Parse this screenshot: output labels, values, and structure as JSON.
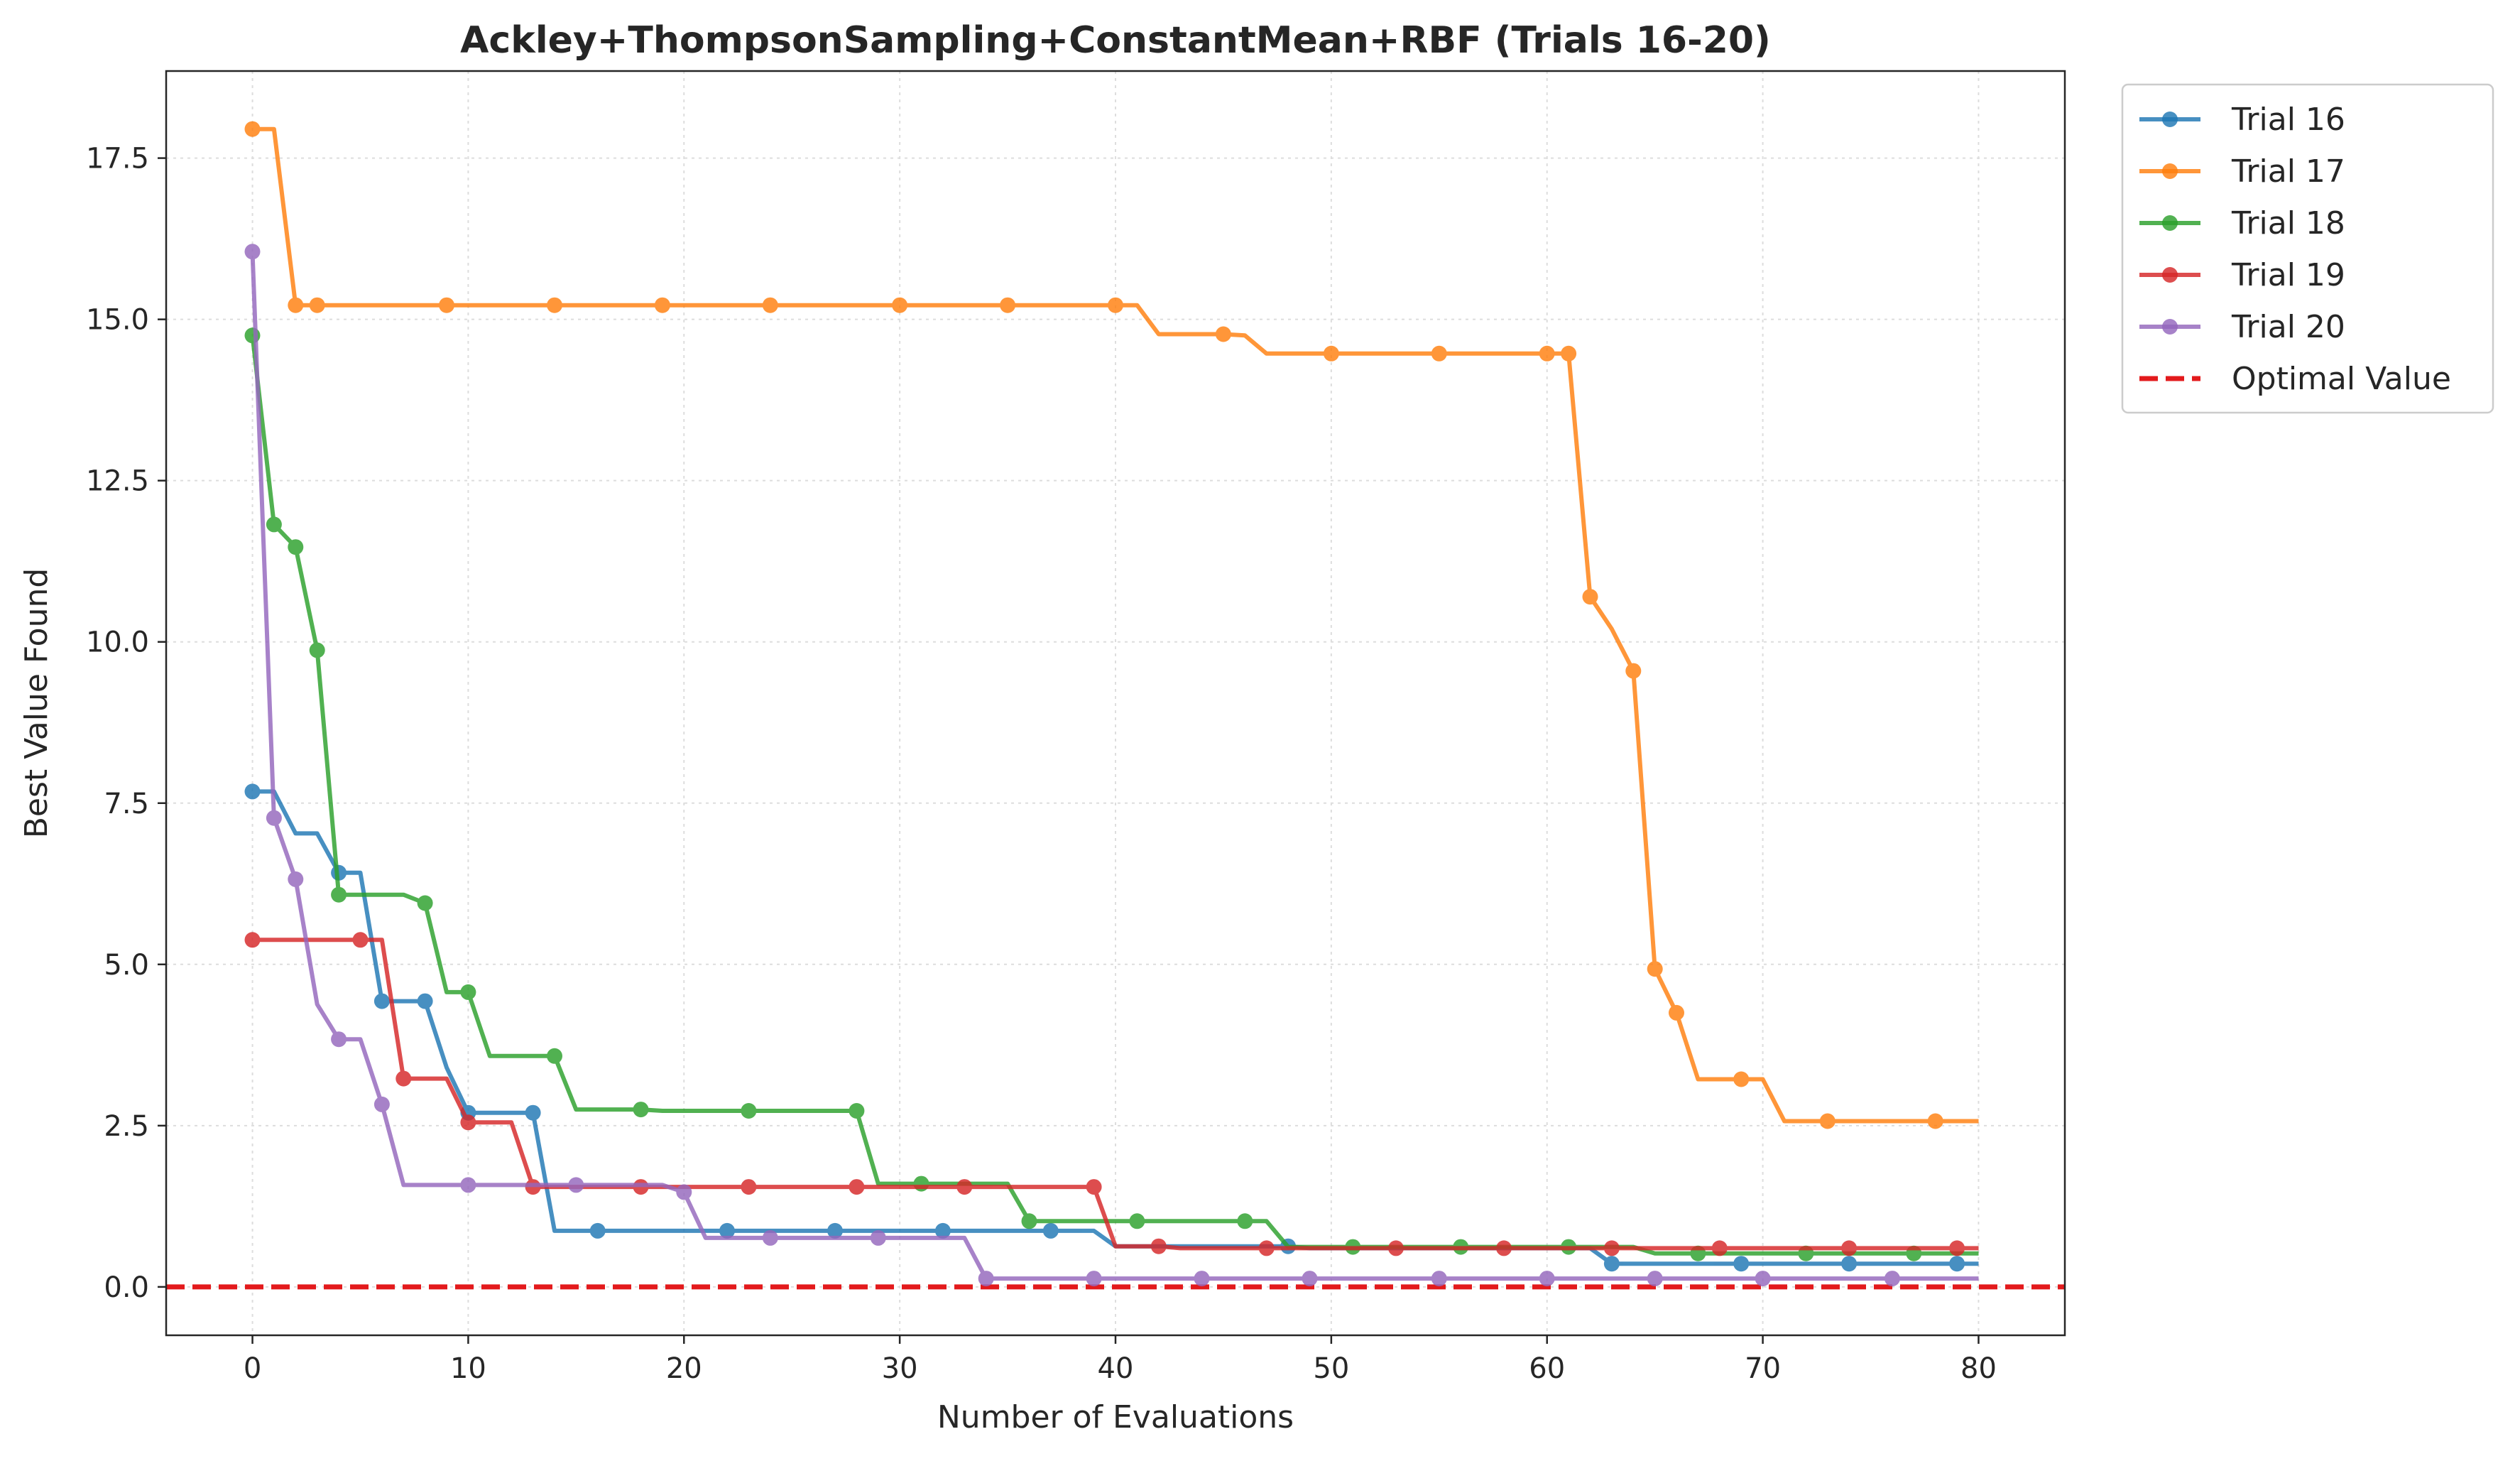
{
  "chart_data": {
    "type": "line",
    "title": "Ackley+ThompsonSampling+ConstantMean+RBF (Trials 16-20)",
    "xlabel": "Number of Evaluations",
    "ylabel": "Best Value Found",
    "xlim": [
      -4,
      84
    ],
    "ylim": [
      -0.75,
      18.85
    ],
    "xticks": [
      0,
      10,
      20,
      30,
      40,
      50,
      60,
      70,
      80
    ],
    "yticks": [
      0.0,
      2.5,
      5.0,
      7.5,
      10.0,
      12.5,
      15.0,
      17.5
    ],
    "xtick_labels": [
      "0",
      "10",
      "20",
      "30",
      "40",
      "50",
      "60",
      "70",
      "80"
    ],
    "ytick_labels": [
      "0.0",
      "2.5",
      "5.0",
      "7.5",
      "10.0",
      "12.5",
      "15.0",
      "17.5"
    ],
    "grid": true,
    "legend_position": "outside-top-right",
    "optimal_value": {
      "name": "Optimal Value",
      "value": 0.0,
      "color": "#e31a1c",
      "style": "dashed"
    },
    "series": [
      {
        "name": "Trial 16",
        "color": "#1f77b4",
        "line": [
          [
            0,
            7.68
          ],
          [
            1,
            7.68
          ],
          [
            2,
            7.03
          ],
          [
            3,
            7.03
          ],
          [
            4,
            6.42
          ],
          [
            5,
            6.42
          ],
          [
            6,
            4.43
          ],
          [
            7,
            4.43
          ],
          [
            8,
            4.43
          ],
          [
            9,
            3.4
          ],
          [
            10,
            2.7
          ],
          [
            11,
            2.7
          ],
          [
            12,
            2.7
          ],
          [
            13,
            2.7
          ],
          [
            14,
            0.87
          ],
          [
            15,
            0.87
          ],
          [
            16,
            0.87
          ],
          [
            22,
            0.87
          ],
          [
            27,
            0.87
          ],
          [
            32,
            0.87
          ],
          [
            37,
            0.87
          ],
          [
            39,
            0.87
          ],
          [
            40,
            0.63
          ],
          [
            48,
            0.63
          ],
          [
            49,
            0.6
          ],
          [
            62,
            0.6
          ],
          [
            63,
            0.36
          ],
          [
            80,
            0.36
          ]
        ],
        "markers": [
          [
            0,
            7.68
          ],
          [
            4,
            6.42
          ],
          [
            6,
            4.43
          ],
          [
            8,
            4.43
          ],
          [
            10,
            2.7
          ],
          [
            13,
            2.7
          ],
          [
            16,
            0.87
          ],
          [
            22,
            0.87
          ],
          [
            27,
            0.87
          ],
          [
            32,
            0.87
          ],
          [
            37,
            0.87
          ],
          [
            48,
            0.63
          ],
          [
            63,
            0.36
          ],
          [
            69,
            0.36
          ],
          [
            74,
            0.36
          ],
          [
            79,
            0.36
          ]
        ]
      },
      {
        "name": "Trial 17",
        "color": "#ff7f0e",
        "line": [
          [
            0,
            17.95
          ],
          [
            1,
            17.95
          ],
          [
            2,
            15.22
          ],
          [
            41,
            15.22
          ],
          [
            42,
            14.77
          ],
          [
            45,
            14.77
          ],
          [
            46,
            14.75
          ],
          [
            47,
            14.47
          ],
          [
            61,
            14.47
          ],
          [
            62,
            10.7
          ],
          [
            63,
            10.2
          ],
          [
            64,
            9.55
          ],
          [
            65,
            4.93
          ],
          [
            66,
            4.25
          ],
          [
            67,
            3.22
          ],
          [
            70,
            3.22
          ],
          [
            71,
            2.57
          ],
          [
            80,
            2.57
          ]
        ],
        "markers": [
          [
            0,
            17.95
          ],
          [
            2,
            15.22
          ],
          [
            3,
            15.22
          ],
          [
            9,
            15.22
          ],
          [
            14,
            15.22
          ],
          [
            19,
            15.22
          ],
          [
            24,
            15.22
          ],
          [
            30,
            15.22
          ],
          [
            35,
            15.22
          ],
          [
            40,
            15.22
          ],
          [
            45,
            14.77
          ],
          [
            50,
            14.47
          ],
          [
            55,
            14.47
          ],
          [
            60,
            14.47
          ],
          [
            61,
            14.47
          ],
          [
            62,
            10.7
          ],
          [
            64,
            9.55
          ],
          [
            65,
            4.93
          ],
          [
            66,
            4.25
          ],
          [
            69,
            3.22
          ],
          [
            73,
            2.57
          ],
          [
            78,
            2.57
          ]
        ]
      },
      {
        "name": "Trial 18",
        "color": "#2ca02c",
        "line": [
          [
            0,
            14.75
          ],
          [
            1,
            11.82
          ],
          [
            2,
            11.47
          ],
          [
            3,
            9.87
          ],
          [
            4,
            6.08
          ],
          [
            7,
            6.08
          ],
          [
            8,
            5.95
          ],
          [
            9,
            4.57
          ],
          [
            10,
            4.57
          ],
          [
            11,
            3.58
          ],
          [
            14,
            3.58
          ],
          [
            15,
            2.75
          ],
          [
            18,
            2.75
          ],
          [
            19,
            2.73
          ],
          [
            28,
            2.73
          ],
          [
            29,
            1.6
          ],
          [
            35,
            1.6
          ],
          [
            36,
            1.02
          ],
          [
            47,
            1.02
          ],
          [
            48,
            0.62
          ],
          [
            64,
            0.62
          ],
          [
            65,
            0.52
          ],
          [
            80,
            0.52
          ]
        ],
        "markers": [
          [
            0,
            14.75
          ],
          [
            1,
            11.82
          ],
          [
            2,
            11.47
          ],
          [
            3,
            9.87
          ],
          [
            4,
            6.08
          ],
          [
            8,
            5.95
          ],
          [
            10,
            4.57
          ],
          [
            14,
            3.58
          ],
          [
            18,
            2.75
          ],
          [
            23,
            2.73
          ],
          [
            28,
            2.73
          ],
          [
            31,
            1.6
          ],
          [
            36,
            1.02
          ],
          [
            41,
            1.02
          ],
          [
            46,
            1.02
          ],
          [
            51,
            0.62
          ],
          [
            56,
            0.62
          ],
          [
            61,
            0.62
          ],
          [
            67,
            0.52
          ],
          [
            72,
            0.52
          ],
          [
            77,
            0.52
          ]
        ]
      },
      {
        "name": "Trial 19",
        "color": "#d62728",
        "line": [
          [
            0,
            5.38
          ],
          [
            6,
            5.38
          ],
          [
            7,
            3.23
          ],
          [
            9,
            3.23
          ],
          [
            10,
            2.55
          ],
          [
            12,
            2.55
          ],
          [
            13,
            1.55
          ],
          [
            39,
            1.55
          ],
          [
            40,
            0.63
          ],
          [
            42,
            0.63
          ],
          [
            43,
            0.6
          ],
          [
            80,
            0.6
          ]
        ],
        "markers": [
          [
            0,
            5.38
          ],
          [
            5,
            5.38
          ],
          [
            7,
            3.23
          ],
          [
            10,
            2.55
          ],
          [
            13,
            1.55
          ],
          [
            18,
            1.55
          ],
          [
            23,
            1.55
          ],
          [
            28,
            1.55
          ],
          [
            33,
            1.55
          ],
          [
            39,
            1.55
          ],
          [
            42,
            0.63
          ],
          [
            47,
            0.6
          ],
          [
            53,
            0.6
          ],
          [
            58,
            0.6
          ],
          [
            63,
            0.6
          ],
          [
            68,
            0.6
          ],
          [
            74,
            0.6
          ],
          [
            79,
            0.6
          ]
        ]
      },
      {
        "name": "Trial 20",
        "color": "#9467bd",
        "line": [
          [
            0,
            16.05
          ],
          [
            1,
            7.27
          ],
          [
            2,
            6.32
          ],
          [
            3,
            4.38
          ],
          [
            4,
            3.84
          ],
          [
            5,
            3.84
          ],
          [
            6,
            2.83
          ],
          [
            7,
            1.58
          ],
          [
            19,
            1.58
          ],
          [
            20,
            1.47
          ],
          [
            21,
            0.76
          ],
          [
            33,
            0.76
          ],
          [
            34,
            0.13
          ],
          [
            80,
            0.13
          ]
        ],
        "markers": [
          [
            0,
            16.05
          ],
          [
            1,
            7.27
          ],
          [
            2,
            6.32
          ],
          [
            4,
            3.84
          ],
          [
            6,
            2.83
          ],
          [
            10,
            1.58
          ],
          [
            15,
            1.58
          ],
          [
            20,
            1.47
          ],
          [
            24,
            0.76
          ],
          [
            29,
            0.76
          ],
          [
            34,
            0.13
          ],
          [
            39,
            0.13
          ],
          [
            44,
            0.13
          ],
          [
            49,
            0.13
          ],
          [
            55,
            0.13
          ],
          [
            60,
            0.13
          ],
          [
            65,
            0.13
          ],
          [
            70,
            0.13
          ],
          [
            76,
            0.13
          ]
        ]
      }
    ]
  }
}
